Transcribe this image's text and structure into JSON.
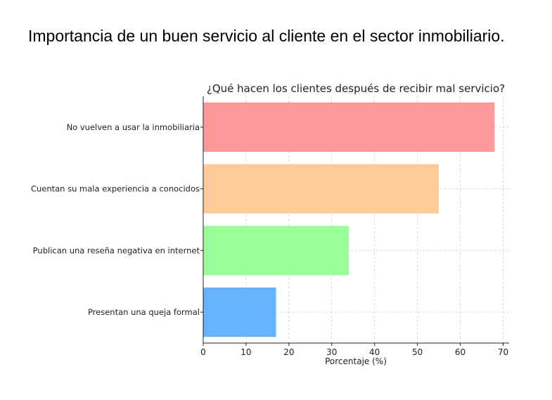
{
  "page_title": "Importancia de un buen servicio al cliente en el sector inmobiliario.",
  "chart_data": {
    "type": "bar",
    "orientation": "horizontal",
    "title": "¿Qué hacen los clientes después de recibir mal servicio?",
    "xlabel": "Porcentaje (%)",
    "ylabel": "",
    "categories": [
      "No vuelven a usar la inmobiliaria",
      "Cuentan su mala experiencia a conocidos",
      "Publican una reseña negativa en internet",
      "Presentan una queja formal"
    ],
    "values": [
      68,
      55,
      34,
      17
    ],
    "colors": [
      "#ff9999",
      "#ffcc99",
      "#99ff99",
      "#66b3ff"
    ],
    "xlim": [
      0,
      71.4
    ],
    "xticks": [
      0,
      10,
      20,
      30,
      40,
      50,
      60,
      70
    ],
    "grid": true
  }
}
